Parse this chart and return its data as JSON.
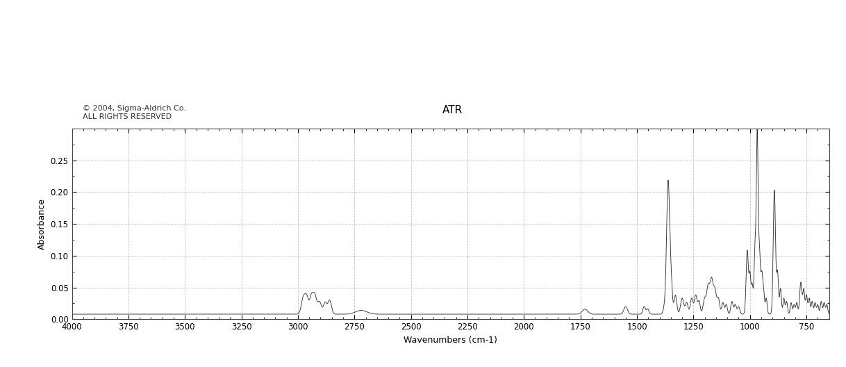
{
  "title": "ATR",
  "xlabel": "Wavenumbers (cm-1)",
  "ylabel": "Absorbance",
  "copyright_line1": "© 2004, Sigma-Aldrich Co.",
  "copyright_line2": "ALL RIGHTS RESERVED",
  "xlim": [
    4000,
    650
  ],
  "ylim": [
    0.0,
    0.3
  ],
  "yticks": [
    0.0,
    0.05,
    0.1,
    0.15,
    0.2,
    0.25
  ],
  "xticks": [
    4000,
    3750,
    3500,
    3250,
    3000,
    2750,
    2500,
    2250,
    2000,
    1750,
    1500,
    1250,
    1000,
    750
  ],
  "background_color": "#ffffff",
  "line_color": "#333333",
  "grid_color": "#bbbbbb",
  "title_fontsize": 11,
  "label_fontsize": 9,
  "tick_fontsize": 8.5,
  "copyright_fontsize": 8
}
